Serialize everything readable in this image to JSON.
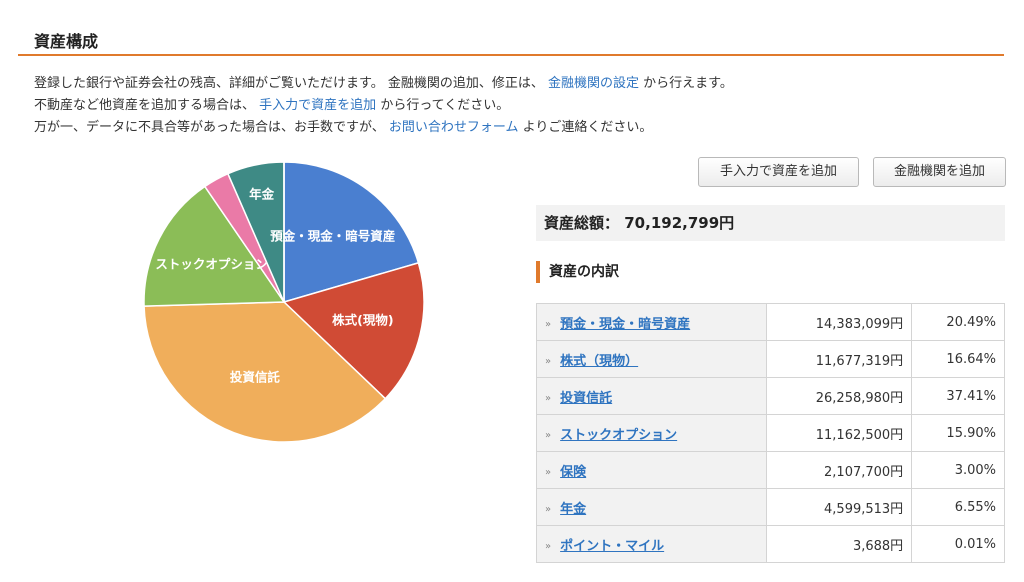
{
  "page": {
    "title": "資産構成",
    "intro": {
      "line1_text": "登録した銀行や証券会社の残高、詳細がご覧いただけます。 金融機関の追加、修正は、",
      "line1_link": "金融機関の設定",
      "line1_suffix": "から行えます。",
      "line2_text": "不動産など他資産を追加する場合は、",
      "line2_link": "手入力で資産を追加",
      "line2_suffix": "から行ってください。",
      "line3_text": "万が一、データに不具合等があった場合は、お手数ですが、",
      "line3_link": "お問い合わせフォーム",
      "line3_suffix": "よりご連絡ください。"
    }
  },
  "buttons": {
    "manual_add": "手入力で資産を追加",
    "bank_add": "金融機関を追加"
  },
  "total": {
    "label": "資産総額：",
    "value": "70,192,799円"
  },
  "breakdown": {
    "heading": "資産の内訳",
    "rows": [
      {
        "name": "預金・現金・暗号資産",
        "amount": "14,383,099円",
        "percent": "20.49%"
      },
      {
        "name": "株式（現物）",
        "amount": "11,677,319円",
        "percent": "16.64%"
      },
      {
        "name": "投資信託",
        "amount": "26,258,980円",
        "percent": "37.41%"
      },
      {
        "name": "ストックオプション",
        "amount": "11,162,500円",
        "percent": "15.90%"
      },
      {
        "name": "保険",
        "amount": "2,107,700円",
        "percent": "3.00%"
      },
      {
        "name": "年金",
        "amount": "4,599,513円",
        "percent": "6.55%"
      },
      {
        "name": "ポイント・マイル",
        "amount": "3,688円",
        "percent": "0.01%"
      }
    ]
  },
  "chart_data": {
    "type": "pie",
    "slices": [
      {
        "label": "預金・現金・暗号資産",
        "value": 14383099,
        "color": "#4a7fd0"
      },
      {
        "label": "株式(現物)",
        "value": 11677319,
        "color": "#d04b35"
      },
      {
        "label": "投資信託",
        "value": 26258980,
        "color": "#f0ae5b"
      },
      {
        "label": "ストックオプション",
        "value": 11162500,
        "color": "#8bbd57"
      },
      {
        "label": "",
        "value": 2107700,
        "color": "#ea7aa7"
      },
      {
        "label": "年金",
        "value": 4599513,
        "color": "#3e8a85"
      },
      {
        "label": "",
        "value": 3688,
        "color": "#aaaaaa"
      }
    ]
  }
}
